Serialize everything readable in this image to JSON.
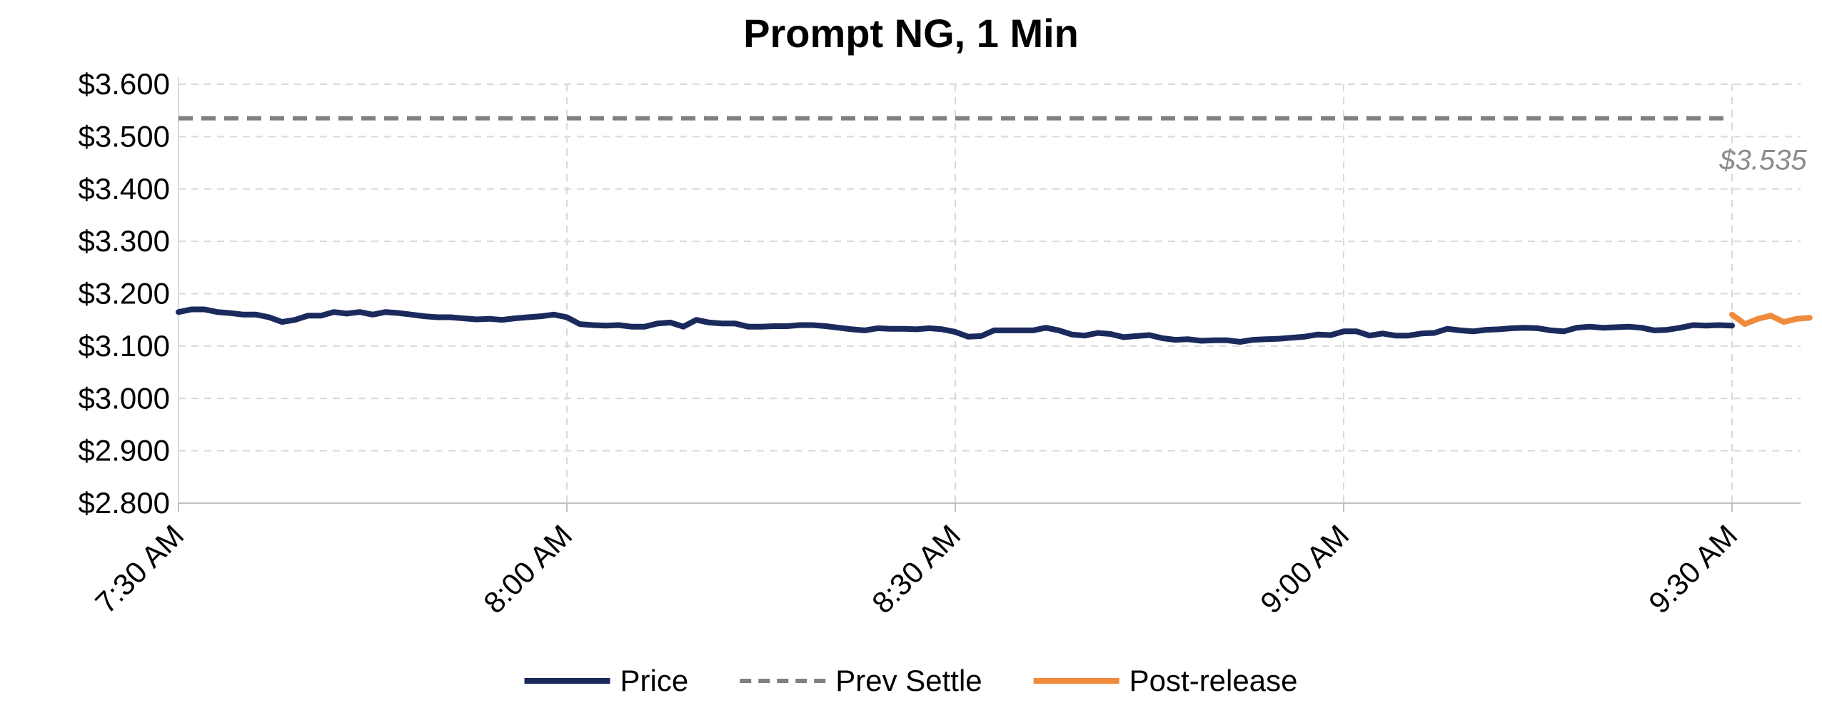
{
  "chart_data": {
    "type": "line",
    "title": "Prompt NG, 1 Min",
    "xlabel": "",
    "ylabel": "",
    "x_tick_labels": [
      "7:30 AM",
      "8:00 AM",
      "8:30 AM",
      "9:00 AM",
      "9:30 AM"
    ],
    "x_range_minutes": [
      0,
      126
    ],
    "y_tick_labels": [
      "$3.600",
      "$3.500",
      "$3.400",
      "$3.300",
      "$3.200",
      "$3.100",
      "$3.000",
      "$2.900",
      "$2.800"
    ],
    "ylim": [
      2.8,
      3.6
    ],
    "grid": true,
    "legend_position": "bottom",
    "series": [
      {
        "name": "Price",
        "color": "#1b2a5c",
        "style": "solid",
        "x": [
          0,
          1,
          2,
          3,
          4,
          5,
          6,
          7,
          8,
          9,
          10,
          11,
          12,
          13,
          14,
          15,
          16,
          17,
          18,
          19,
          20,
          21,
          22,
          23,
          24,
          25,
          26,
          27,
          28,
          29,
          30,
          31,
          32,
          33,
          34,
          35,
          36,
          37,
          38,
          39,
          40,
          41,
          42,
          43,
          44,
          45,
          46,
          47,
          48,
          49,
          50,
          51,
          52,
          53,
          54,
          55,
          56,
          57,
          58,
          59,
          60,
          61,
          62,
          63,
          64,
          65,
          66,
          67,
          68,
          69,
          70,
          71,
          72,
          73,
          74,
          75,
          76,
          77,
          78,
          79,
          80,
          81,
          82,
          83,
          84,
          85,
          86,
          87,
          88,
          89,
          90,
          91,
          92,
          93,
          94,
          95,
          96,
          97,
          98,
          99,
          100,
          101,
          102,
          103,
          104,
          105,
          106,
          107,
          108,
          109,
          110,
          111,
          112,
          113,
          114,
          115,
          116,
          117,
          118,
          119,
          120
        ],
        "values": [
          3.165,
          3.17,
          3.17,
          3.165,
          3.163,
          3.16,
          3.16,
          3.155,
          3.146,
          3.15,
          3.158,
          3.158,
          3.165,
          3.162,
          3.165,
          3.16,
          3.165,
          3.163,
          3.16,
          3.157,
          3.155,
          3.155,
          3.153,
          3.151,
          3.152,
          3.15,
          3.153,
          3.155,
          3.157,
          3.16,
          3.155,
          3.142,
          3.14,
          3.139,
          3.14,
          3.137,
          3.137,
          3.143,
          3.145,
          3.137,
          3.15,
          3.145,
          3.143,
          3.143,
          3.137,
          3.137,
          3.138,
          3.138,
          3.14,
          3.14,
          3.138,
          3.135,
          3.132,
          3.13,
          3.134,
          3.133,
          3.133,
          3.132,
          3.134,
          3.132,
          3.127,
          3.118,
          3.119,
          3.13,
          3.13,
          3.13,
          3.13,
          3.135,
          3.13,
          3.122,
          3.12,
          3.125,
          3.123,
          3.117,
          3.119,
          3.121,
          3.115,
          3.112,
          3.113,
          3.11,
          3.111,
          3.111,
          3.108,
          3.112,
          3.113,
          3.114,
          3.116,
          3.118,
          3.122,
          3.121,
          3.128,
          3.128,
          3.12,
          3.124,
          3.12,
          3.12,
          3.124,
          3.125,
          3.133,
          3.13,
          3.128,
          3.131,
          3.132,
          3.134,
          3.135,
          3.134,
          3.13,
          3.128,
          3.135,
          3.137,
          3.135,
          3.136,
          3.137,
          3.135,
          3.13,
          3.131,
          3.135,
          3.14,
          3.139,
          3.14,
          3.139
        ]
      },
      {
        "name": "Prev Settle",
        "color": "#808080",
        "style": "dashed",
        "x": [
          0,
          120
        ],
        "values": [
          3.535,
          3.535
        ]
      },
      {
        "name": "Post-release",
        "color": "#f08a3c",
        "style": "solid",
        "x": [
          120,
          121,
          122,
          123,
          124,
          125,
          126
        ],
        "values": [
          3.16,
          3.142,
          3.152,
          3.158,
          3.146,
          3.152,
          3.154
        ]
      }
    ],
    "annotations": [
      {
        "text": "$3.535",
        "color": "#8c8c8c",
        "x": 125,
        "y": 3.535
      }
    ]
  }
}
